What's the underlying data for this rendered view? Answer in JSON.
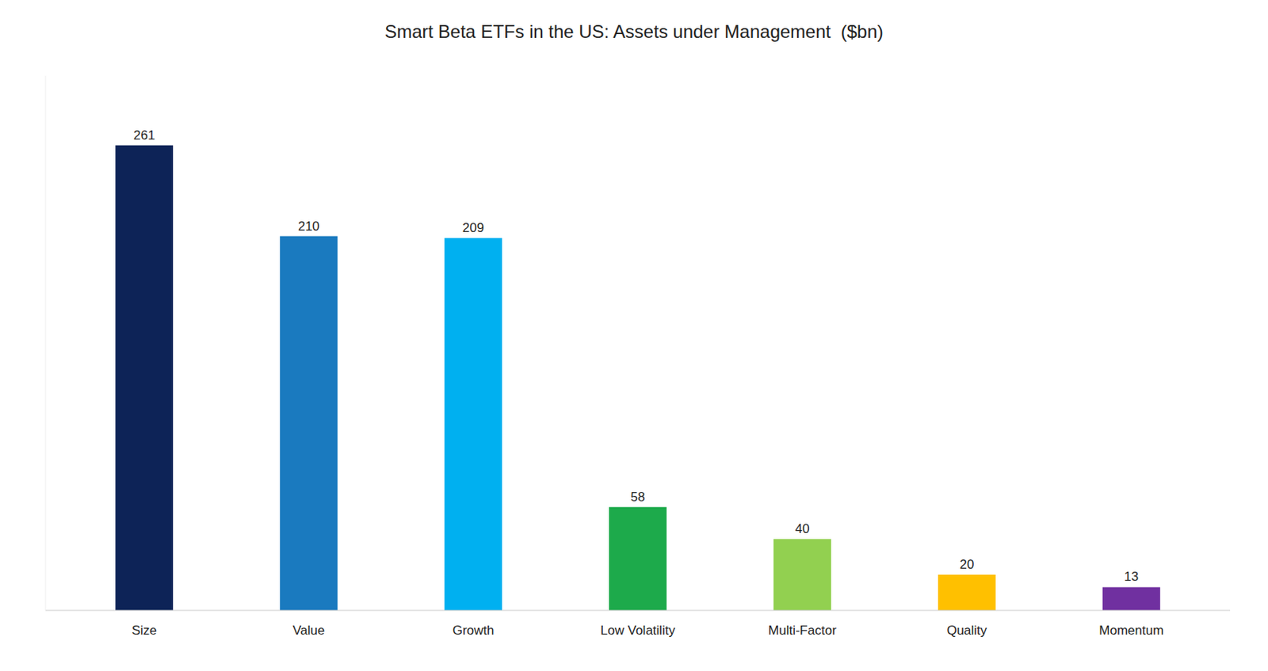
{
  "chart_data": {
    "type": "bar",
    "title": "Smart Beta ETFs in the US: Assets under Management  ($bn)",
    "categories": [
      "Size",
      "Value",
      "Growth",
      "Low Volatility",
      "Multi-Factor",
      "Quality",
      "Momentum"
    ],
    "values": [
      261,
      210,
      209,
      58,
      40,
      20,
      13
    ],
    "colors": [
      "#0d2357",
      "#1a7abf",
      "#00b0f0",
      "#1daa4b",
      "#92d050",
      "#ffc000",
      "#7030a0"
    ],
    "ylim": [
      0,
      300
    ],
    "data_labels": true,
    "tick_labels": "x",
    "grid": false
  }
}
